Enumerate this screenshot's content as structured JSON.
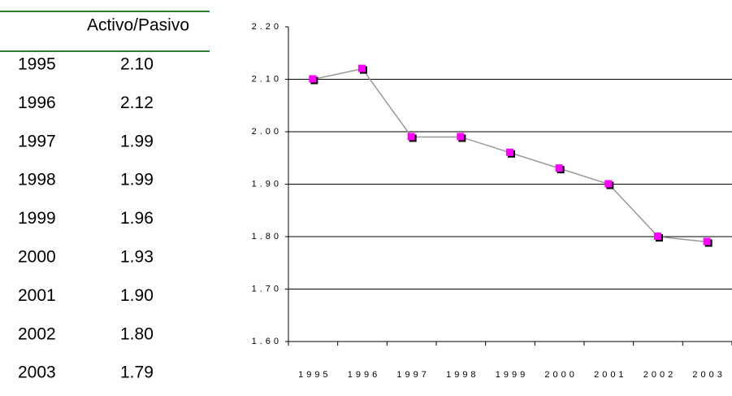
{
  "table": {
    "header": "Activo/Pasivo",
    "rows": [
      [
        "1995",
        "2.10"
      ],
      [
        "1996",
        "2.12"
      ],
      [
        "1997",
        "1.99"
      ],
      [
        "1998",
        "1.99"
      ],
      [
        "1999",
        "1.96"
      ],
      [
        "2000",
        "1.93"
      ],
      [
        "2001",
        "1.90"
      ],
      [
        "2002",
        "1.80"
      ],
      [
        "2003",
        "1.79"
      ]
    ]
  },
  "chart_data": {
    "type": "line",
    "categories": [
      "1995",
      "1996",
      "1997",
      "1998",
      "1999",
      "2000",
      "2001",
      "2002",
      "2003"
    ],
    "series": [
      {
        "color": "#ff00ff",
        "values": [
          2.1,
          2.12,
          1.99,
          1.99,
          1.96,
          1.93,
          1.9,
          1.8,
          1.79
        ]
      }
    ],
    "ylim": [
      1.6,
      2.2
    ],
    "yticks": [
      {
        "value": 1.6,
        "label": "1.60"
      },
      {
        "value": 1.7,
        "label": "1.70"
      },
      {
        "value": 1.8,
        "label": "1.80"
      },
      {
        "value": 1.9,
        "label": "1.90"
      },
      {
        "value": 2.0,
        "label": "2.00"
      },
      {
        "value": 2.1,
        "label": "2.10"
      },
      {
        "value": 2.2,
        "label": "2.20"
      }
    ],
    "grid": true
  }
}
